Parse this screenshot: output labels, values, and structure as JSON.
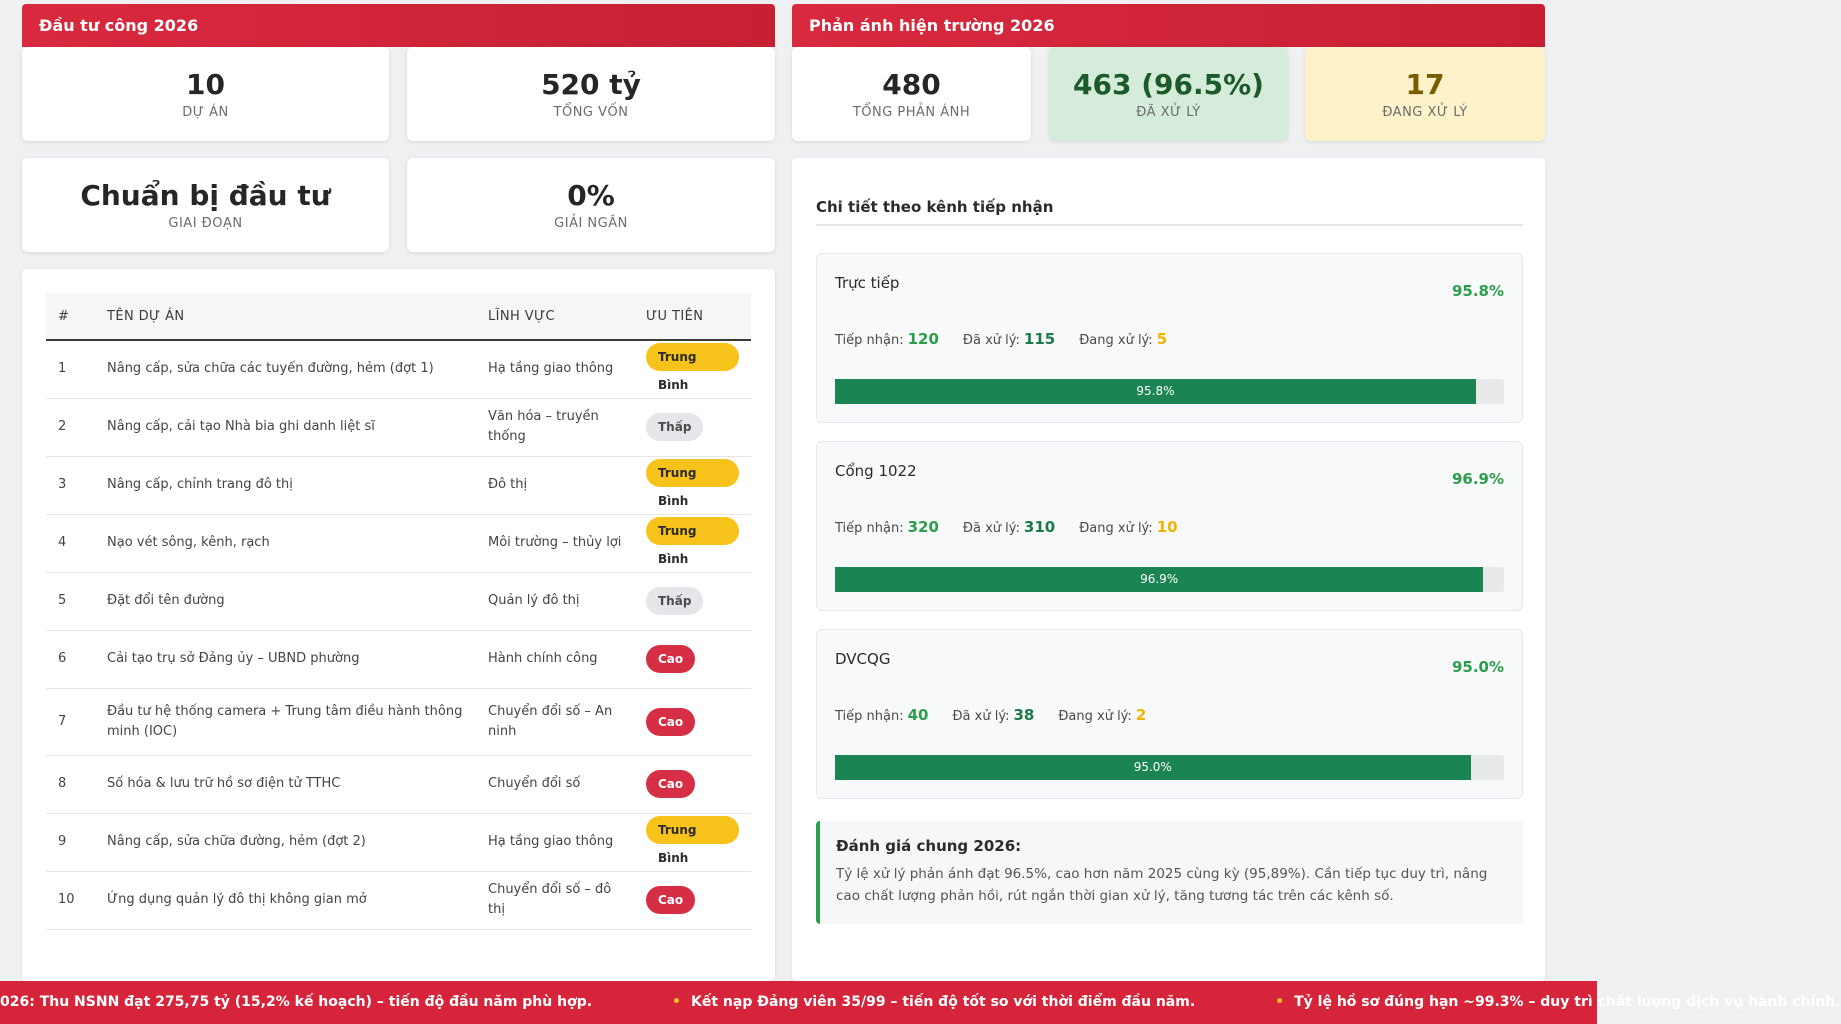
{
  "left": {
    "header": "Đầu tư công 2026",
    "cards": [
      {
        "value": "10",
        "label": "DỰ ÁN"
      },
      {
        "value": "520 tỷ",
        "label": "TỔNG VỐN"
      },
      {
        "value": "Chuẩn bị đầu tư",
        "label": "GIAI ĐOẠN"
      },
      {
        "value": "0%",
        "label": "GIẢI NGÂN"
      }
    ],
    "table": {
      "headers": [
        "#",
        "TÊN DỰ ÁN",
        "LĨNH VỰC",
        "ƯU TIÊN"
      ],
      "rows": [
        {
          "no": "1",
          "name": "Nâng cấp, sửa chữa các tuyến đường, hẻm (đợt 1)",
          "field": "Hạ tầng giao thông",
          "priority": "Trung Bình",
          "level": "tb"
        },
        {
          "no": "2",
          "name": "Nâng cấp, cải tạo Nhà bia ghi danh liệt sĩ",
          "field": "Văn hóa – truyền thống",
          "priority": "Thấp",
          "level": "th"
        },
        {
          "no": "3",
          "name": "Nâng cấp, chỉnh trang đô thị",
          "field": "Đô thị",
          "priority": "Trung Bình",
          "level": "tb"
        },
        {
          "no": "4",
          "name": "Nạo vét sông, kênh, rạch",
          "field": "Môi trường – thủy lợi",
          "priority": "Trung Bình",
          "level": "tb"
        },
        {
          "no": "5",
          "name": "Đặt đổi tên đường",
          "field": "Quản lý đô thị",
          "priority": "Thấp",
          "level": "th"
        },
        {
          "no": "6",
          "name": "Cải tạo trụ sở Đảng ủy – UBND phường",
          "field": "Hành chính công",
          "priority": "Cao",
          "level": "cao"
        },
        {
          "no": "7",
          "name": "Đầu tư hệ thống camera + Trung tâm điều hành thông minh (IOC)",
          "field": "Chuyển đổi số – An ninh",
          "priority": "Cao",
          "level": "cao"
        },
        {
          "no": "8",
          "name": "Số hóa & lưu trữ hồ sơ điện tử TTHC",
          "field": "Chuyển đổi số",
          "priority": "Cao",
          "level": "cao"
        },
        {
          "no": "9",
          "name": "Nâng cấp, sửa chữa đường, hẻm (đợt 2)",
          "field": "Hạ tầng giao thông",
          "priority": "Trung Bình",
          "level": "tb"
        },
        {
          "no": "10",
          "name": "Ứng dụng quản lý đô thị không gian mở",
          "field": "Chuyển đổi số – đô thị",
          "priority": "Cao",
          "level": "cao"
        }
      ]
    }
  },
  "right": {
    "header": "Phản ánh hiện trường 2026",
    "cards": [
      {
        "value": "480",
        "label": "TỔNG PHẢN ÁNH"
      },
      {
        "value": "463 (96.5%)",
        "label": "ĐÃ XỬ LÝ"
      },
      {
        "value": "17",
        "label": "ĐANG XỬ LÝ"
      }
    ],
    "detail_title": "Chi tiết theo kênh tiếp nhận",
    "stat_labels": {
      "received": "Tiếp nhận:",
      "done": "Đã xử lý:",
      "pending": "Đang xử lý:"
    },
    "channels": [
      {
        "name": "Trực tiếp",
        "pct": "95.8%",
        "pct_value": 95.8,
        "received": "120",
        "done": "115",
        "pending": "5"
      },
      {
        "name": "Cổng 1022",
        "pct": "96.9%",
        "pct_value": 96.9,
        "received": "320",
        "done": "310",
        "pending": "10"
      },
      {
        "name": "DVCQG",
        "pct": "95.0%",
        "pct_value": 95.0,
        "received": "40",
        "done": "38",
        "pending": "2"
      }
    ],
    "evaluation": {
      "title": "Đánh giá chung 2026:",
      "body": "Tỷ lệ xử lý phản ánh đạt 96.5%, cao hơn năm 2025 cùng kỳ (95,89%). Cần tiếp tục duy trì, nâng cao chất lượng phản hồi, rút ngắn thời gian xử lý, tăng tương tác trên các kênh số."
    }
  },
  "ticker": {
    "items": [
      "026: Thu NSNN đạt 275,75 tỷ (15,2% kế hoạch) – tiến độ đầu năm phù hợp.",
      "Kết nạp Đảng viên 35/99 – tiến độ tốt so với thời điểm đầu năm.",
      "Tỷ lệ hồ sơ đúng hạn ~99.3% – duy trì chất lượng dịch vụ hành chính."
    ],
    "separator": "•"
  },
  "colors": {
    "accent": "#d6253a",
    "success": "#2c9e4b",
    "bar": "#1a8452",
    "warning": "#f7c21a"
  }
}
